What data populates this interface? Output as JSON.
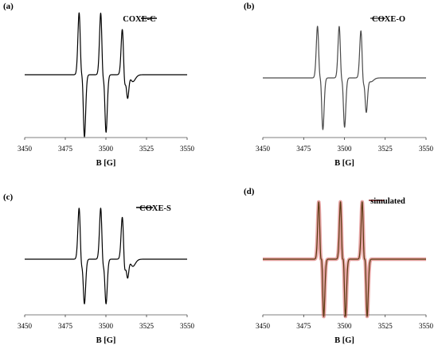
{
  "figure": {
    "panels": [
      {
        "letter": "(a)",
        "legend": "COXE-C"
      },
      {
        "letter": "(b)",
        "legend": "COXE-O"
      },
      {
        "letter": "(c)",
        "legend": "COXE-S"
      },
      {
        "letter": "(d)",
        "legend": "simulated"
      }
    ]
  },
  "chart_data": [
    {
      "type": "line",
      "panel": "(a)",
      "title": "",
      "xlabel": "B [G]",
      "ylabel": "",
      "xlim": [
        3450,
        3550
      ],
      "xticks": [
        3450,
        3475,
        3500,
        3525,
        3550
      ],
      "grid": false,
      "legend_position": "top-right",
      "series": [
        {
          "name": "COXE-C",
          "color": "#000000",
          "lines": [
            {
              "center": 3484.3,
              "amp": 1.0,
              "width": 0.9
            },
            {
              "center": 3486.0,
              "amp": 1.0,
              "width": 0.9
            },
            {
              "center": 3497.6,
              "amp": 1.0,
              "width": 0.9
            },
            {
              "center": 3499.3,
              "amp": 0.92,
              "width": 0.9
            },
            {
              "center": 3510.9,
              "amp": 0.72,
              "width": 0.9
            },
            {
              "center": 3512.6,
              "amp": 0.45,
              "width": 0.9
            },
            {
              "center": 3514.6,
              "amp": 0.12,
              "width": 2.0
            }
          ]
        }
      ]
    },
    {
      "type": "line",
      "panel": "(b)",
      "title": "",
      "xlabel": "B [G]",
      "ylabel": "",
      "xlim": [
        3450,
        3550
      ],
      "xticks": [
        3450,
        3475,
        3500,
        3525,
        3550
      ],
      "grid": false,
      "legend_position": "top-right",
      "series": [
        {
          "name": "COXE-O",
          "color": "#4a4a4a",
          "lines": [
            {
              "center": 3484.3,
              "amp": 1.0,
              "width": 0.9
            },
            {
              "center": 3486.0,
              "amp": 1.0,
              "width": 0.9
            },
            {
              "center": 3497.6,
              "amp": 1.0,
              "width": 0.9
            },
            {
              "center": 3499.3,
              "amp": 0.95,
              "width": 0.9
            },
            {
              "center": 3510.9,
              "amp": 0.9,
              "width": 0.9
            },
            {
              "center": 3512.6,
              "amp": 0.7,
              "width": 0.9
            },
            {
              "center": 3514.3,
              "amp": 0.08,
              "width": 2.0
            }
          ]
        }
      ]
    },
    {
      "type": "line",
      "panel": "(c)",
      "title": "",
      "xlabel": "B [G]",
      "ylabel": "",
      "xlim": [
        3450,
        3550
      ],
      "xticks": [
        3450,
        3475,
        3500,
        3525,
        3550
      ],
      "grid": false,
      "legend_position": "top-right",
      "series": [
        {
          "name": "COXE-S",
          "color": "#000000",
          "lines": [
            {
              "center": 3484.3,
              "amp": 1.0,
              "width": 0.9
            },
            {
              "center": 3486.0,
              "amp": 0.85,
              "width": 0.9
            },
            {
              "center": 3497.6,
              "amp": 1.0,
              "width": 0.9
            },
            {
              "center": 3499.3,
              "amp": 0.85,
              "width": 0.9
            },
            {
              "center": 3510.9,
              "amp": 0.8,
              "width": 0.9
            },
            {
              "center": 3512.6,
              "amp": 0.45,
              "width": 0.9
            },
            {
              "center": 3514.6,
              "amp": 0.15,
              "width": 2.0
            }
          ]
        }
      ]
    },
    {
      "type": "line",
      "panel": "(d)",
      "title": "",
      "xlabel": "B [G]",
      "ylabel": "",
      "xlim": [
        3450,
        3550
      ],
      "xticks": [
        3450,
        3475,
        3500,
        3525,
        3550
      ],
      "grid": false,
      "legend_position": "top-right",
      "series": [
        {
          "name": "simulated",
          "color": "#8b1a1a",
          "line_color": "#5a3a10",
          "glow_color": "#d45a5a",
          "lines": [
            {
              "center": 3485.0,
              "amp": 1.0,
              "width": 0.8
            },
            {
              "center": 3486.6,
              "amp": 1.0,
              "width": 0.8
            },
            {
              "center": 3498.3,
              "amp": 1.0,
              "width": 0.8
            },
            {
              "center": 3499.9,
              "amp": 1.0,
              "width": 0.8
            },
            {
              "center": 3511.6,
              "amp": 1.0,
              "width": 0.8
            },
            {
              "center": 3513.2,
              "amp": 1.0,
              "width": 0.8
            }
          ]
        }
      ]
    }
  ]
}
